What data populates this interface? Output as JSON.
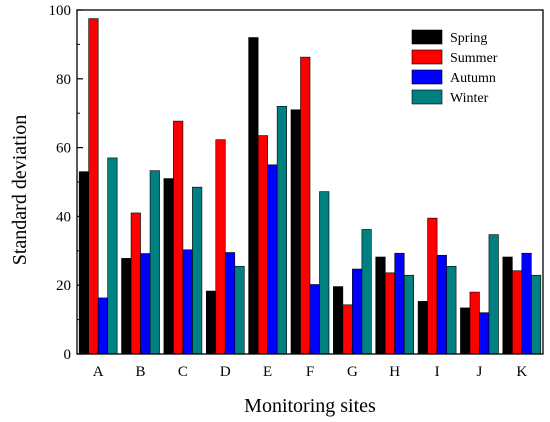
{
  "chart_data": {
    "type": "bar",
    "title": "",
    "xlabel": "Monitoring sites",
    "ylabel": "Standard deviation",
    "ylim": [
      0,
      100
    ],
    "yticks": [
      0,
      20,
      40,
      60,
      80,
      100
    ],
    "grid": false,
    "legend_position": "top-right",
    "categories": [
      "A",
      "B",
      "C",
      "D",
      "E",
      "F",
      "G",
      "H",
      "I",
      "J",
      "K"
    ],
    "series": [
      {
        "name": "Spring",
        "color": "#000000",
        "values": [
          53,
          27.8,
          51,
          18.3,
          92,
          71,
          19.6,
          28.2,
          15.3,
          13.4,
          28.2
        ]
      },
      {
        "name": "Summer",
        "color": "#ff0000",
        "values": [
          97.5,
          41,
          67.7,
          62.3,
          63.5,
          86.3,
          14.3,
          23.6,
          39.5,
          18,
          24.2
        ]
      },
      {
        "name": "Autumn",
        "color": "#0000ff",
        "values": [
          16.3,
          29.2,
          30.3,
          29.5,
          55,
          20.2,
          24.7,
          29.3,
          28.7,
          12,
          29.3
        ]
      },
      {
        "name": "Winter",
        "color": "#008080",
        "values": [
          57,
          53.3,
          48.5,
          25.5,
          72,
          47.2,
          36.2,
          22.9,
          25.5,
          34.7,
          22.9
        ]
      }
    ]
  }
}
